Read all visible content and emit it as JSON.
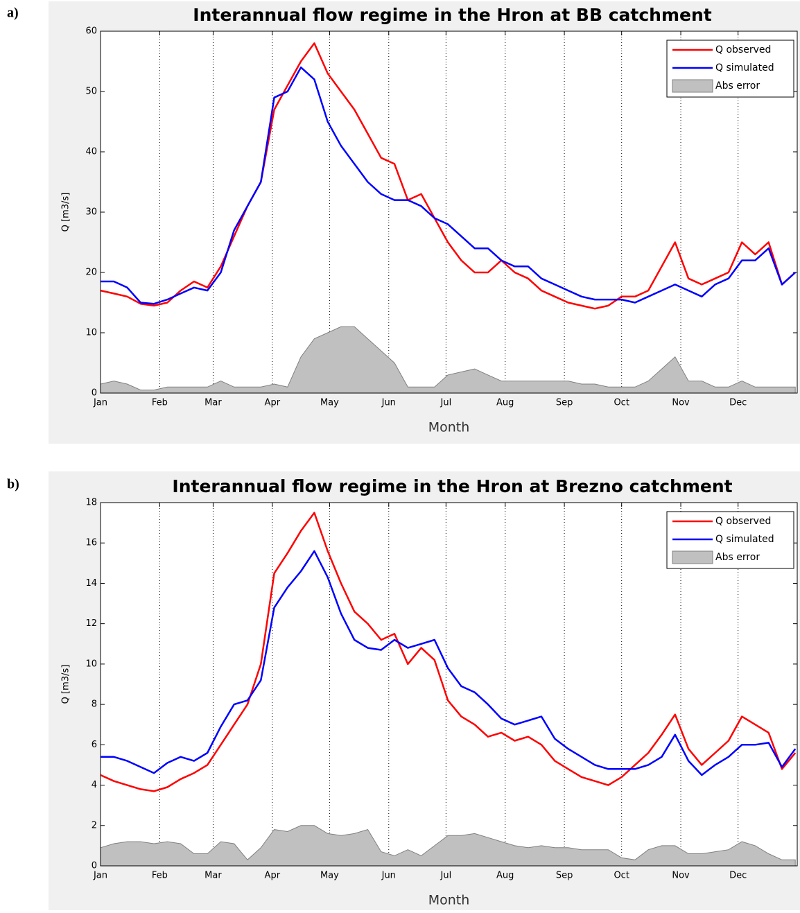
{
  "chart_data": [
    {
      "type": "line",
      "panel_label": "a)",
      "title": "Interannual flow regime in the Hron at BB catchment",
      "xlabel": "Month",
      "ylabel": "Q [m3/s]",
      "xlim": [
        1,
        366
      ],
      "ylim": [
        0,
        60
      ],
      "xticks": [
        {
          "value": 1,
          "label": "Jan"
        },
        {
          "value": 32,
          "label": "Feb"
        },
        {
          "value": 60,
          "label": "Mar"
        },
        {
          "value": 91,
          "label": "Apr"
        },
        {
          "value": 121,
          "label": "May"
        },
        {
          "value": 152,
          "label": "Jun"
        },
        {
          "value": 182,
          "label": "Jul"
        },
        {
          "value": 213,
          "label": "Aug"
        },
        {
          "value": 244,
          "label": "Sep"
        },
        {
          "value": 274,
          "label": "Oct"
        },
        {
          "value": 305,
          "label": "Nov"
        },
        {
          "value": 335,
          "label": "Dec"
        }
      ],
      "yticks": [
        0,
        10,
        20,
        30,
        40,
        50,
        60
      ],
      "grid": "x",
      "legend": "upper right",
      "x": [
        1,
        8,
        15,
        22,
        29,
        36,
        43,
        50,
        57,
        64,
        71,
        78,
        85,
        92,
        99,
        106,
        113,
        120,
        127,
        134,
        141,
        148,
        155,
        162,
        169,
        176,
        183,
        190,
        197,
        204,
        211,
        218,
        225,
        232,
        239,
        246,
        253,
        260,
        267,
        274,
        281,
        288,
        295,
        302,
        309,
        316,
        323,
        330,
        337,
        344,
        351,
        358,
        365
      ],
      "series": [
        {
          "name": "Q observed",
          "color": "#ff0000",
          "style": "line",
          "values": [
            17,
            16.5,
            16,
            14.8,
            14.5,
            15,
            17,
            18.5,
            17.5,
            21,
            26,
            31,
            35,
            47,
            51,
            55,
            58,
            53,
            50,
            47,
            43,
            39,
            38,
            32,
            33,
            29,
            25,
            22,
            20,
            20,
            22,
            20,
            19,
            17,
            16,
            15,
            14.5,
            14,
            14.5,
            16,
            16,
            17,
            21,
            25,
            19,
            18,
            19,
            20,
            25,
            23,
            25,
            18,
            20
          ]
        },
        {
          "name": "Q simulated",
          "color": "#0000ff",
          "style": "line",
          "values": [
            18.5,
            18.5,
            17.5,
            15,
            14.8,
            15.5,
            16.5,
            17.5,
            17,
            20,
            27,
            31,
            35,
            49,
            50,
            54,
            52,
            45,
            41,
            38,
            35,
            33,
            32,
            32,
            31,
            29,
            28,
            26,
            24,
            24,
            22,
            21,
            21,
            19,
            18,
            17,
            16,
            15.5,
            15.5,
            15.5,
            15,
            16,
            17,
            18,
            17,
            16,
            18,
            19,
            22,
            22,
            24,
            18,
            20
          ]
        },
        {
          "name": "Abs error",
          "color": "#c0c0c0",
          "style": "area",
          "values": [
            1.5,
            2,
            1.5,
            0.5,
            0.5,
            1,
            1,
            1,
            1,
            2,
            1,
            1,
            1,
            1.5,
            1,
            6,
            9,
            10,
            11,
            11,
            9,
            7,
            5,
            1,
            1,
            1,
            3,
            3.5,
            4,
            3,
            2,
            2,
            2,
            2,
            2,
            2,
            1.5,
            1.5,
            1,
            1,
            1,
            2,
            4,
            6,
            2,
            2,
            1,
            1,
            2,
            1,
            1,
            1,
            1
          ]
        }
      ]
    },
    {
      "type": "line",
      "panel_label": "b)",
      "title": "Interannual flow regime in the Hron at Brezno catchment",
      "xlabel": "Month",
      "ylabel": "Q [m3/s]",
      "xlim": [
        1,
        366
      ],
      "ylim": [
        0,
        18
      ],
      "xticks": [
        {
          "value": 1,
          "label": "Jan"
        },
        {
          "value": 32,
          "label": "Feb"
        },
        {
          "value": 60,
          "label": "Mar"
        },
        {
          "value": 91,
          "label": "Apr"
        },
        {
          "value": 121,
          "label": "May"
        },
        {
          "value": 152,
          "label": "Jun"
        },
        {
          "value": 182,
          "label": "Jul"
        },
        {
          "value": 213,
          "label": "Aug"
        },
        {
          "value": 244,
          "label": "Sep"
        },
        {
          "value": 274,
          "label": "Oct"
        },
        {
          "value": 305,
          "label": "Nov"
        },
        {
          "value": 335,
          "label": "Dec"
        }
      ],
      "yticks": [
        0,
        2,
        4,
        6,
        8,
        10,
        12,
        14,
        16,
        18
      ],
      "grid": "x",
      "legend": "upper right",
      "x": [
        1,
        8,
        15,
        22,
        29,
        36,
        43,
        50,
        57,
        64,
        71,
        78,
        85,
        92,
        99,
        106,
        113,
        120,
        127,
        134,
        141,
        148,
        155,
        162,
        169,
        176,
        183,
        190,
        197,
        204,
        211,
        218,
        225,
        232,
        239,
        246,
        253,
        260,
        267,
        274,
        281,
        288,
        295,
        302,
        309,
        316,
        323,
        330,
        337,
        344,
        351,
        358,
        365
      ],
      "series": [
        {
          "name": "Q observed",
          "color": "#ff0000",
          "style": "line",
          "values": [
            4.5,
            4.2,
            4.0,
            3.8,
            3.7,
            3.9,
            4.3,
            4.6,
            5.0,
            6.0,
            7.0,
            8.0,
            10.0,
            14.5,
            15.5,
            16.6,
            17.5,
            15.6,
            14.0,
            12.6,
            12.0,
            11.2,
            11.5,
            10.0,
            10.8,
            10.2,
            8.2,
            7.4,
            7.0,
            6.4,
            6.6,
            6.2,
            6.4,
            6.0,
            5.2,
            4.8,
            4.4,
            4.2,
            4.0,
            4.4,
            5.0,
            5.6,
            6.5,
            7.5,
            5.8,
            5.0,
            5.6,
            6.2,
            7.4,
            7.0,
            6.6,
            4.8,
            5.6
          ]
        },
        {
          "name": "Q simulated",
          "color": "#0000ff",
          "style": "line",
          "values": [
            5.4,
            5.4,
            5.2,
            4.9,
            4.6,
            5.1,
            5.4,
            5.2,
            5.6,
            6.9,
            8.0,
            8.2,
            9.2,
            12.8,
            13.8,
            14.6,
            15.6,
            14.3,
            12.5,
            11.2,
            10.8,
            10.7,
            11.2,
            10.8,
            11.0,
            11.2,
            9.8,
            8.9,
            8.6,
            8.0,
            7.3,
            7.0,
            7.2,
            7.4,
            6.3,
            5.8,
            5.4,
            5.0,
            4.8,
            4.8,
            4.8,
            5.0,
            5.4,
            6.5,
            5.2,
            4.5,
            5.0,
            5.4,
            6.0,
            6.0,
            6.1,
            4.9,
            5.8
          ]
        },
        {
          "name": "Abs error",
          "color": "#c0c0c0",
          "style": "area",
          "values": [
            0.9,
            1.1,
            1.2,
            1.2,
            1.1,
            1.2,
            1.1,
            0.6,
            0.6,
            1.2,
            1.1,
            0.3,
            0.9,
            1.8,
            1.7,
            2.0,
            2.0,
            1.6,
            1.5,
            1.6,
            1.8,
            0.7,
            0.5,
            0.8,
            0.5,
            1.0,
            1.5,
            1.5,
            1.6,
            1.4,
            1.2,
            1.0,
            0.9,
            1.0,
            0.9,
            0.9,
            0.8,
            0.8,
            0.8,
            0.4,
            0.3,
            0.8,
            1.0,
            1.0,
            0.6,
            0.6,
            0.7,
            0.8,
            1.2,
            1.0,
            0.6,
            0.3,
            0.3
          ]
        }
      ]
    }
  ]
}
